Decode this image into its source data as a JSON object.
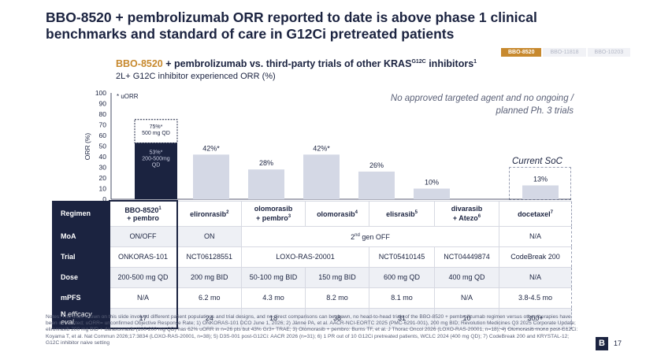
{
  "title": "BBO-8520 + pembrolizumab ORR reported to date is above phase 1 clinical benchmarks and standard of care in G12Ci pretreated patients",
  "tabs": [
    {
      "label": "BBO-8520",
      "active": true
    },
    {
      "label": "BBO-11818",
      "active": false
    },
    {
      "label": "BBO-10203",
      "active": false
    }
  ],
  "subtitle": {
    "accent": "BBO-8520",
    "rest": " + pembrolizumab vs. third-party trials of other KRAS",
    "sup": "G12C",
    "rest2": " inhibitors",
    "sup2": "1",
    "line2": "2L+ G12C inhibitor experienced ORR (%)"
  },
  "chart_data": {
    "type": "bar",
    "ylabel": "ORR (%)",
    "ylim": [
      0,
      100
    ],
    "yticks": [
      0,
      10,
      20,
      30,
      40,
      50,
      60,
      70,
      80,
      90,
      100
    ],
    "legend_note": "* uORR",
    "right_note": "No approved targeted agent and no ongoing / planned Ph. 3 trials",
    "soc_label": "Current SoC",
    "categories": [
      "BBO-8520 + pembro",
      "elironrasib",
      "olomorasib + pembro",
      "olomorasib",
      "elisrasib",
      "divarasib + Atezo",
      "docetaxel"
    ],
    "values": [
      75,
      42,
      28,
      42,
      26,
      10,
      13
    ],
    "labels": [
      "75%*",
      "42%*",
      "28%",
      "42%*",
      "26%",
      "10%",
      "13%"
    ],
    "bbo_stack": {
      "top_value": 75,
      "top_label_1": "75%*",
      "top_label_2": "500 mg QD",
      "base_value": 53,
      "base_label_1": "53%*",
      "base_label_2": "200-500mg",
      "base_label_3": "QD"
    },
    "colors": {
      "primary": "#1b2340",
      "other": "#d4d8e5",
      "accent": "#c7892e"
    }
  },
  "table": {
    "headers": [
      {
        "main": "Regimen",
        "sup": ""
      },
      {
        "main": "BBO-8520",
        "sup": "1",
        "line2": "+ pembro"
      },
      {
        "main": "elironrasib",
        "sup": "2",
        "line2": ""
      },
      {
        "main": "olomorasib",
        "sup": "",
        "line2": "+ pembro",
        "sup2": "3"
      },
      {
        "main": "olomorasib",
        "sup": "4",
        "line2": ""
      },
      {
        "main": "elisrasib",
        "sup": "5",
        "line2": ""
      },
      {
        "main": "divarasib",
        "sup": "",
        "line2": "+ Atezo",
        "sup2": "6"
      },
      {
        "main": "docetaxel",
        "sup": "7",
        "line2": ""
      }
    ],
    "moa": {
      "label": "MoA",
      "bbo": "ON/OFF",
      "eliron": "ON",
      "gen_pre": "2",
      "gen_sup": "nd",
      "gen_post": " gen OFF",
      "doce": "N/A"
    },
    "trial": {
      "label": "Trial",
      "bbo": "ONKORAS-101",
      "eliron": "NCT06128551",
      "olo": "LOXO-RAS-20001",
      "elis": "NCT05410145",
      "diva": "NCT04449874",
      "doce": "CodeBreak 200"
    },
    "dose": {
      "label": "Dose",
      "values": [
        "200-500 mg QD",
        "200 mg BID",
        "50-100 mg BID",
        "150 mg BID",
        "600 mg QD",
        "400 mg QD",
        "N/A"
      ]
    },
    "mpfs": {
      "label": "mPFS",
      "values": [
        "N/A",
        "6.2 mo",
        "4.3 mo",
        "8.2 mo",
        "8.1 mo",
        "N/A",
        "3.8-4.5 mo"
      ]
    },
    "n": {
      "label": "N",
      "label_it": " efficacy eval.",
      "values": [
        "17",
        "24",
        "18",
        "38",
        "31",
        "10",
        "300+"
      ]
    }
  },
  "footnote": "Notes: The trials shown on this slide involved different patient populations and trial designs, and no direct comparisons can be drawn, no head-to-head trials of the BBO-8520 + pembrolizumab regimen versus other therapies have been conducted; uORR= unconfirmed Objective Response Rate; 1) ONKORAS-101 DCO June 1, 2026; 2) Jänne PA, et al. AACR-NCI-EORTC 2025 (PMC-6291-001), 200 mg BID; Revolution Medicines Q3 2025 Corporate Update; elironrasib 200 mg BID + daraxonrasib (100-200 mg QD) has 62% uORR in n=26 pts but 43% Gr3+ TRAE; 3) Olomorasib + pembro: Burns TF, et al. J Thorac Oncol 2026 (LOXO-RAS-20001, n=18); 4) Olomorasib mono post-G12Ci: Koyama T, et al. Nat Commun 2026;17:3834 (LOXO-RAS-20001, n=38); 5) D3S-001 post-G12Ci: AACR 2026 (n=31); 6) 1 PR out of 10 G12Ci pretreated patients, WCLC 2024 (400 mg QD); 7) CodeBreak 200 and KRYSTAL-12; G12C inhibitor naive setting",
  "logo": "B",
  "page_number": "17"
}
